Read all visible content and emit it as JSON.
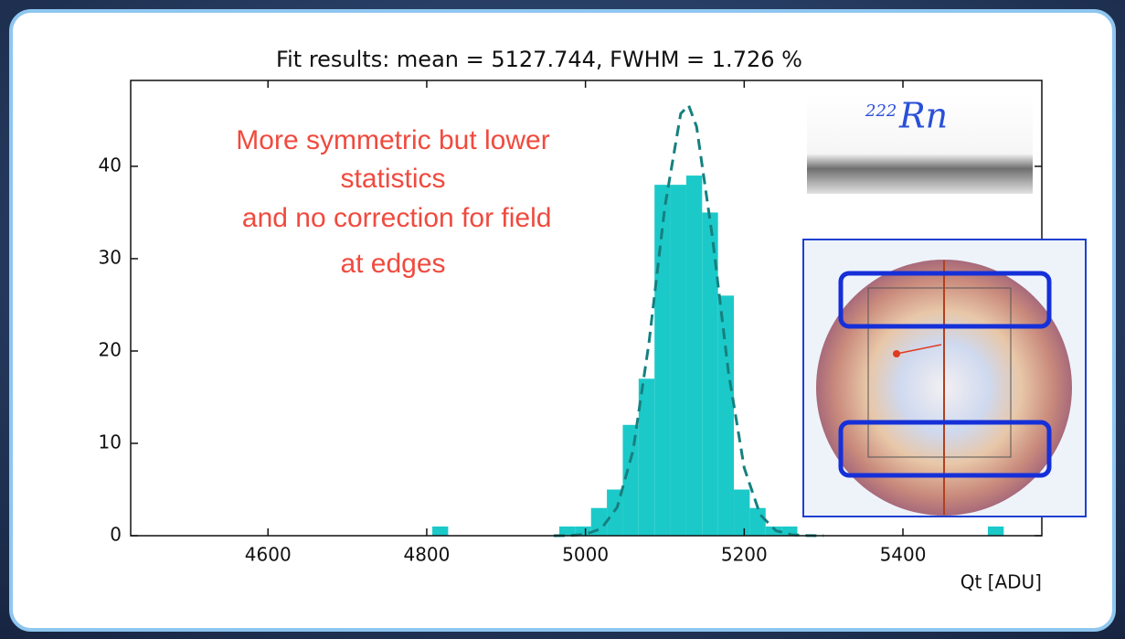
{
  "chart_data": {
    "type": "histogram",
    "title": "Fit results: mean = 5127.744,  FWHM = 1.726 %",
    "x_label": "Qt [ADU]",
    "bins": [
      4807,
      4827,
      4847,
      4867,
      4887,
      4907,
      4927,
      4947,
      4967,
      4987,
      5007,
      5027,
      5047,
      5067,
      5087,
      5107,
      5127,
      5147,
      5167,
      5187,
      5207,
      5227,
      5247,
      5267,
      5287,
      5307,
      5327,
      5347,
      5367,
      5387,
      5407,
      5427,
      5447,
      5467,
      5487,
      5507,
      5527
    ],
    "values": [
      1,
      0,
      0,
      0,
      0,
      0,
      0,
      0,
      1,
      1,
      3,
      5,
      12,
      17,
      38,
      38,
      39,
      35,
      26,
      5,
      3,
      1,
      1,
      0,
      0,
      0,
      0,
      0,
      0,
      0,
      0,
      0,
      0,
      0,
      0,
      1
    ],
    "color": "#1cc9c9",
    "fit": {
      "x": [
        4960,
        4980,
        5000,
        5020,
        5040,
        5060,
        5080,
        5100,
        5120,
        5130,
        5140,
        5160,
        5180,
        5200,
        5220,
        5240,
        5260,
        5280,
        5300
      ],
      "values": [
        0,
        0.02,
        0.15,
        0.77,
        3.08,
        9.23,
        20.88,
        35.6,
        45.7,
        46.6,
        44.3,
        32.3,
        17.8,
        7.35,
        2.29,
        0.54,
        0.1,
        0.01,
        0
      ],
      "color": "#15807f",
      "style": "dashed"
    },
    "xlim": [
      4427,
      5575
    ],
    "ylim": [
      0,
      49.3
    ],
    "xticks": [
      4600,
      4800,
      5000,
      5200,
      5400
    ],
    "yticks": [
      0,
      10,
      20,
      30,
      40
    ],
    "annotation": [
      "More symmetric but lower",
      "statistics",
      " and no correction for field",
      "at edges"
    ],
    "annotation_color": "#f04a3e",
    "isotope": {
      "mass": "222",
      "symbol": "Rn"
    }
  }
}
